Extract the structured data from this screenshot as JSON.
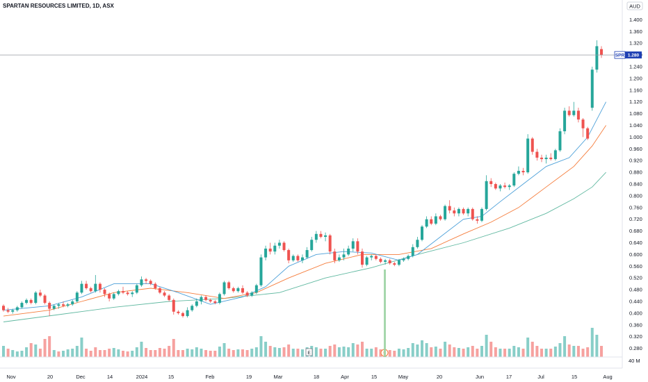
{
  "header": {
    "title": "SPARTAN RESOURCES LIMITED, 1D, ASX"
  },
  "axis": {
    "currency": "AUD",
    "volume_label": "40 M"
  },
  "price_tag": {
    "symbol": "SPR",
    "value": "1.280"
  },
  "markers": {
    "earnings": "E",
    "split": "S"
  },
  "colors": {
    "up": "#26a69a",
    "down": "#ef5350",
    "blue_candle": "#2962ff",
    "ma_fast": "#4a9fd8",
    "ma_mid": "#f57c3b",
    "ma_slow": "#5fb8a0",
    "tag_bg": "#1e3fb3"
  },
  "chart_data": {
    "type": "candlestick",
    "title": "SPARTAN RESOURCES LIMITED, 1D, ASX",
    "ylim": [
      0.26,
      1.42
    ],
    "y_ticks": [
      "1.400",
      "1.360",
      "1.320",
      "1.280",
      "1.240",
      "1.200",
      "1.160",
      "1.120",
      "1.080",
      "1.040",
      "1.000",
      "0.960",
      "0.920",
      "0.880",
      "0.840",
      "0.800",
      "0.760",
      "0.720",
      "0.680",
      "0.640",
      "0.600",
      "0.560",
      "0.520",
      "0.480",
      "0.440",
      "0.400",
      "0.360",
      "0.320",
      "0.280"
    ],
    "x_ticks": [
      "Nov",
      "20",
      "Dec",
      "14",
      "2024",
      "15",
      "Feb",
      "19",
      "Mar",
      "18",
      "Apr",
      "15",
      "May",
      "20",
      "Jun",
      "17",
      "Jul",
      "15",
      "Aug"
    ],
    "last_price": 1.28,
    "candles": [
      [
        0.425,
        0.43,
        0.405,
        0.41
      ],
      [
        0.41,
        0.418,
        0.4,
        0.405
      ],
      [
        0.405,
        0.415,
        0.398,
        0.41
      ],
      [
        0.41,
        0.425,
        0.405,
        0.42
      ],
      [
        0.42,
        0.44,
        0.415,
        0.435
      ],
      [
        0.435,
        0.45,
        0.43,
        0.445
      ],
      [
        0.445,
        0.45,
        0.43,
        0.435
      ],
      [
        0.435,
        0.475,
        0.43,
        0.47
      ],
      [
        0.47,
        0.48,
        0.455,
        0.46
      ],
      [
        0.46,
        0.465,
        0.43,
        0.435
      ],
      [
        0.435,
        0.44,
        0.39,
        0.415
      ],
      [
        0.415,
        0.43,
        0.41,
        0.425
      ],
      [
        0.425,
        0.435,
        0.415,
        0.43
      ],
      [
        0.43,
        0.44,
        0.42,
        0.425
      ],
      [
        0.425,
        0.435,
        0.42,
        0.43
      ],
      [
        0.43,
        0.445,
        0.425,
        0.44
      ],
      [
        0.44,
        0.475,
        0.435,
        0.47
      ],
      [
        0.47,
        0.51,
        0.465,
        0.5
      ],
      [
        0.5,
        0.51,
        0.48,
        0.485
      ],
      [
        0.485,
        0.49,
        0.47,
        0.475
      ],
      [
        0.475,
        0.53,
        0.47,
        0.5
      ],
      [
        0.5,
        0.505,
        0.47,
        0.48
      ],
      [
        0.48,
        0.485,
        0.455,
        0.465
      ],
      [
        0.465,
        0.47,
        0.44,
        0.45
      ],
      [
        0.45,
        0.47,
        0.445,
        0.465
      ],
      [
        0.465,
        0.48,
        0.46,
        0.475
      ],
      [
        0.475,
        0.49,
        0.465,
        0.47
      ],
      [
        0.47,
        0.475,
        0.46,
        0.465
      ],
      [
        0.465,
        0.475,
        0.455,
        0.47
      ],
      [
        0.47,
        0.5,
        0.465,
        0.495
      ],
      [
        0.495,
        0.525,
        0.49,
        0.515
      ],
      [
        0.515,
        0.52,
        0.5,
        0.51
      ],
      [
        0.51,
        0.515,
        0.495,
        0.5
      ],
      [
        0.5,
        0.505,
        0.48,
        0.485
      ],
      [
        0.485,
        0.49,
        0.465,
        0.47
      ],
      [
        0.47,
        0.475,
        0.455,
        0.46
      ],
      [
        0.46,
        0.465,
        0.44,
        0.445
      ],
      [
        0.445,
        0.45,
        0.395,
        0.405
      ],
      [
        0.405,
        0.41,
        0.395,
        0.4
      ],
      [
        0.4,
        0.405,
        0.385,
        0.39
      ],
      [
        0.39,
        0.42,
        0.385,
        0.41
      ],
      [
        0.41,
        0.43,
        0.405,
        0.425
      ],
      [
        0.425,
        0.45,
        0.42,
        0.44
      ],
      [
        0.44,
        0.46,
        0.43,
        0.455
      ],
      [
        0.455,
        0.46,
        0.44,
        0.445
      ],
      [
        0.445,
        0.45,
        0.435,
        0.44
      ],
      [
        0.44,
        0.445,
        0.43,
        0.435
      ],
      [
        0.435,
        0.47,
        0.43,
        0.465
      ],
      [
        0.465,
        0.51,
        0.46,
        0.505
      ],
      [
        0.505,
        0.51,
        0.48,
        0.485
      ],
      [
        0.485,
        0.49,
        0.47,
        0.475
      ],
      [
        0.475,
        0.49,
        0.47,
        0.485
      ],
      [
        0.485,
        0.495,
        0.465,
        0.47
      ],
      [
        0.47,
        0.475,
        0.455,
        0.46
      ],
      [
        0.46,
        0.475,
        0.455,
        0.47
      ],
      [
        0.47,
        0.5,
        0.465,
        0.495
      ],
      [
        0.495,
        0.6,
        0.49,
        0.59
      ],
      [
        0.59,
        0.63,
        0.58,
        0.62
      ],
      [
        0.62,
        0.64,
        0.6,
        0.61
      ],
      [
        0.61,
        0.64,
        0.6,
        0.63
      ],
      [
        0.63,
        0.65,
        0.62,
        0.64
      ],
      [
        0.64,
        0.645,
        0.61,
        0.615
      ],
      [
        0.615,
        0.62,
        0.57,
        0.58
      ],
      [
        0.58,
        0.6,
        0.575,
        0.595
      ],
      [
        0.595,
        0.6,
        0.575,
        0.58
      ],
      [
        0.58,
        0.6,
        0.57,
        0.59
      ],
      [
        0.59,
        0.625,
        0.585,
        0.615
      ],
      [
        0.615,
        0.66,
        0.61,
        0.65
      ],
      [
        0.65,
        0.68,
        0.64,
        0.67
      ],
      [
        0.67,
        0.68,
        0.655,
        0.66
      ],
      [
        0.66,
        0.675,
        0.645,
        0.665
      ],
      [
        0.665,
        0.67,
        0.6,
        0.61
      ],
      [
        0.61,
        0.62,
        0.57,
        0.58
      ],
      [
        0.58,
        0.6,
        0.575,
        0.59
      ],
      [
        0.59,
        0.62,
        0.58,
        0.6
      ],
      [
        0.6,
        0.63,
        0.595,
        0.62
      ],
      [
        0.62,
        0.655,
        0.61,
        0.645
      ],
      [
        0.645,
        0.655,
        0.6,
        0.61
      ],
      [
        0.61,
        0.62,
        0.555,
        0.565
      ],
      [
        0.565,
        0.595,
        0.56,
        0.59
      ],
      [
        0.59,
        0.6,
        0.58,
        0.595
      ],
      [
        0.595,
        0.6,
        0.58,
        0.585
      ],
      [
        0.585,
        0.59,
        0.57,
        0.575
      ],
      [
        0.575,
        0.585,
        0.565,
        0.58
      ],
      [
        0.58,
        0.585,
        0.565,
        0.57
      ],
      [
        0.57,
        0.575,
        0.56,
        0.565
      ],
      [
        0.565,
        0.585,
        0.56,
        0.58
      ],
      [
        0.58,
        0.59,
        0.575,
        0.585
      ],
      [
        0.585,
        0.6,
        0.58,
        0.595
      ],
      [
        0.595,
        0.635,
        0.59,
        0.625
      ],
      [
        0.625,
        0.66,
        0.62,
        0.65
      ],
      [
        0.65,
        0.7,
        0.645,
        0.695
      ],
      [
        0.695,
        0.73,
        0.69,
        0.72
      ],
      [
        0.72,
        0.73,
        0.7,
        0.705
      ],
      [
        0.705,
        0.74,
        0.7,
        0.73
      ],
      [
        0.73,
        0.735,
        0.715,
        0.72
      ],
      [
        0.72,
        0.77,
        0.715,
        0.765
      ],
      [
        0.765,
        0.785,
        0.74,
        0.75
      ],
      [
        0.75,
        0.76,
        0.73,
        0.74
      ],
      [
        0.74,
        0.76,
        0.73,
        0.755
      ],
      [
        0.755,
        0.76,
        0.735,
        0.74
      ],
      [
        0.74,
        0.76,
        0.73,
        0.755
      ],
      [
        0.755,
        0.76,
        0.715,
        0.72
      ],
      [
        0.72,
        0.73,
        0.705,
        0.715
      ],
      [
        0.715,
        0.76,
        0.71,
        0.755
      ],
      [
        0.755,
        0.87,
        0.75,
        0.85
      ],
      [
        0.85,
        0.86,
        0.83,
        0.84
      ],
      [
        0.84,
        0.845,
        0.82,
        0.825
      ],
      [
        0.825,
        0.84,
        0.815,
        0.835
      ],
      [
        0.835,
        0.845,
        0.825,
        0.83
      ],
      [
        0.83,
        0.84,
        0.82,
        0.835
      ],
      [
        0.835,
        0.88,
        0.83,
        0.875
      ],
      [
        0.875,
        0.9,
        0.87,
        0.885
      ],
      [
        0.885,
        0.895,
        0.87,
        0.88
      ],
      [
        0.88,
        1.01,
        0.875,
        0.995
      ],
      [
        0.995,
        1.0,
        0.94,
        0.95
      ],
      [
        0.95,
        0.96,
        0.92,
        0.93
      ],
      [
        0.93,
        0.94,
        0.915,
        0.925
      ],
      [
        0.925,
        0.94,
        0.91,
        0.93
      ],
      [
        0.93,
        0.945,
        0.92,
        0.925
      ],
      [
        0.925,
        0.96,
        0.92,
        0.955
      ],
      [
        0.955,
        1.03,
        0.95,
        1.02
      ],
      [
        1.02,
        1.1,
        1.01,
        1.09
      ],
      [
        1.09,
        1.105,
        1.07,
        1.075
      ],
      [
        1.075,
        1.12,
        1.07,
        1.09
      ],
      [
        1.09,
        1.1,
        1.05,
        1.06
      ],
      [
        1.06,
        1.065,
        1.0,
        1.03
      ],
      [
        1.03,
        1.035,
        0.99,
        0.995
      ],
      [
        1.1,
        1.24,
        1.09,
        1.23
      ],
      [
        1.23,
        1.33,
        1.22,
        1.31
      ],
      [
        1.3,
        1.31,
        1.27,
        1.28
      ]
    ],
    "volume": [
      [
        16,
        0
      ],
      [
        12,
        1
      ],
      [
        10,
        0
      ],
      [
        8,
        0
      ],
      [
        9,
        0
      ],
      [
        14,
        0
      ],
      [
        20,
        1
      ],
      [
        18,
        0
      ],
      [
        12,
        1
      ],
      [
        26,
        1
      ],
      [
        30,
        1
      ],
      [
        10,
        0
      ],
      [
        8,
        1
      ],
      [
        9,
        0
      ],
      [
        11,
        0
      ],
      [
        12,
        0
      ],
      [
        16,
        0
      ],
      [
        28,
        0
      ],
      [
        12,
        1
      ],
      [
        9,
        1
      ],
      [
        14,
        1
      ],
      [
        10,
        1
      ],
      [
        10,
        1
      ],
      [
        12,
        1
      ],
      [
        13,
        0
      ],
      [
        11,
        0
      ],
      [
        9,
        1
      ],
      [
        8,
        1
      ],
      [
        9,
        0
      ],
      [
        14,
        0
      ],
      [
        22,
        0
      ],
      [
        13,
        1
      ],
      [
        10,
        1
      ],
      [
        10,
        1
      ],
      [
        13,
        1
      ],
      [
        12,
        1
      ],
      [
        16,
        1
      ],
      [
        26,
        1
      ],
      [
        10,
        1
      ],
      [
        10,
        1
      ],
      [
        12,
        0
      ],
      [
        11,
        0
      ],
      [
        14,
        0
      ],
      [
        12,
        0
      ],
      [
        10,
        1
      ],
      [
        9,
        1
      ],
      [
        9,
        1
      ],
      [
        15,
        0
      ],
      [
        20,
        0
      ],
      [
        12,
        1
      ],
      [
        10,
        1
      ],
      [
        11,
        0
      ],
      [
        11,
        1
      ],
      [
        10,
        1
      ],
      [
        12,
        0
      ],
      [
        14,
        0
      ],
      [
        30,
        0
      ],
      [
        22,
        0
      ],
      [
        16,
        1
      ],
      [
        14,
        0
      ],
      [
        13,
        0
      ],
      [
        14,
        1
      ],
      [
        18,
        1
      ],
      [
        12,
        0
      ],
      [
        12,
        1
      ],
      [
        11,
        0
      ],
      [
        14,
        0
      ],
      [
        16,
        0
      ],
      [
        14,
        0
      ],
      [
        12,
        1
      ],
      [
        12,
        0
      ],
      [
        16,
        1
      ],
      [
        18,
        1
      ],
      [
        14,
        0
      ],
      [
        15,
        0
      ],
      [
        14,
        0
      ],
      [
        20,
        0
      ],
      [
        18,
        1
      ],
      [
        22,
        1
      ],
      [
        12,
        0
      ],
      [
        12,
        0
      ],
      [
        14,
        1
      ],
      [
        11,
        1
      ],
      [
        11,
        0
      ],
      [
        10,
        1
      ],
      [
        9,
        1
      ],
      [
        12,
        0
      ],
      [
        11,
        0
      ],
      [
        13,
        0
      ],
      [
        20,
        0
      ],
      [
        18,
        0
      ],
      [
        24,
        0
      ],
      [
        20,
        0
      ],
      [
        14,
        1
      ],
      [
        15,
        0
      ],
      [
        12,
        1
      ],
      [
        22,
        0
      ],
      [
        18,
        1
      ],
      [
        14,
        1
      ],
      [
        13,
        0
      ],
      [
        12,
        1
      ],
      [
        14,
        0
      ],
      [
        16,
        1
      ],
      [
        12,
        1
      ],
      [
        16,
        0
      ],
      [
        32,
        0
      ],
      [
        22,
        1
      ],
      [
        14,
        1
      ],
      [
        12,
        0
      ],
      [
        12,
        1
      ],
      [
        12,
        0
      ],
      [
        16,
        0
      ],
      [
        14,
        0
      ],
      [
        12,
        1
      ],
      [
        28,
        0
      ],
      [
        22,
        1
      ],
      [
        16,
        1
      ],
      [
        12,
        1
      ],
      [
        12,
        0
      ],
      [
        12,
        1
      ],
      [
        15,
        0
      ],
      [
        20,
        0
      ],
      [
        30,
        0
      ],
      [
        18,
        1
      ],
      [
        16,
        0
      ],
      [
        16,
        1
      ],
      [
        12,
        1
      ],
      [
        14,
        1
      ],
      [
        42,
        0
      ],
      [
        32,
        0
      ],
      [
        16,
        1
      ]
    ],
    "ma_fast": [
      [
        0,
        0.41
      ],
      [
        10,
        0.425
      ],
      [
        17,
        0.455
      ],
      [
        24,
        0.5
      ],
      [
        32,
        0.5
      ],
      [
        38,
        0.47
      ],
      [
        45,
        0.43
      ],
      [
        52,
        0.455
      ],
      [
        57,
        0.49
      ],
      [
        62,
        0.56
      ],
      [
        68,
        0.6
      ],
      [
        74,
        0.61
      ],
      [
        80,
        0.605
      ],
      [
        86,
        0.58
      ],
      [
        90,
        0.6
      ],
      [
        95,
        0.66
      ],
      [
        100,
        0.72
      ],
      [
        104,
        0.73
      ],
      [
        108,
        0.78
      ],
      [
        113,
        0.84
      ],
      [
        118,
        0.9
      ],
      [
        123,
        0.93
      ],
      [
        127,
        1.0
      ],
      [
        131,
        1.12
      ]
    ],
    "ma_mid": [
      [
        0,
        0.39
      ],
      [
        10,
        0.41
      ],
      [
        17,
        0.44
      ],
      [
        24,
        0.47
      ],
      [
        32,
        0.485
      ],
      [
        40,
        0.47
      ],
      [
        48,
        0.45
      ],
      [
        55,
        0.47
      ],
      [
        62,
        0.52
      ],
      [
        70,
        0.57
      ],
      [
        78,
        0.6
      ],
      [
        86,
        0.6
      ],
      [
        93,
        0.62
      ],
      [
        100,
        0.67
      ],
      [
        106,
        0.71
      ],
      [
        112,
        0.76
      ],
      [
        118,
        0.83
      ],
      [
        124,
        0.9
      ],
      [
        128,
        0.97
      ],
      [
        131,
        1.04
      ]
    ],
    "ma_slow": [
      [
        0,
        0.37
      ],
      [
        12,
        0.395
      ],
      [
        24,
        0.42
      ],
      [
        36,
        0.44
      ],
      [
        48,
        0.45
      ],
      [
        60,
        0.47
      ],
      [
        70,
        0.52
      ],
      [
        80,
        0.555
      ],
      [
        90,
        0.6
      ],
      [
        100,
        0.64
      ],
      [
        110,
        0.69
      ],
      [
        118,
        0.74
      ],
      [
        124,
        0.79
      ],
      [
        128,
        0.83
      ],
      [
        131,
        0.88
      ]
    ]
  }
}
